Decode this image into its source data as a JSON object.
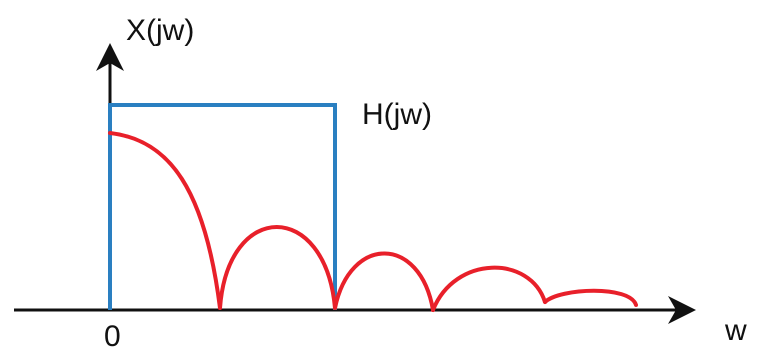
{
  "labels": {
    "y_axis": "X(jw)",
    "x_axis": "w",
    "origin": "0",
    "filter": "H(jw)"
  },
  "colors": {
    "axes": "#111111",
    "filter": "#2a7fc1",
    "spectrum": "#e8202a"
  }
}
